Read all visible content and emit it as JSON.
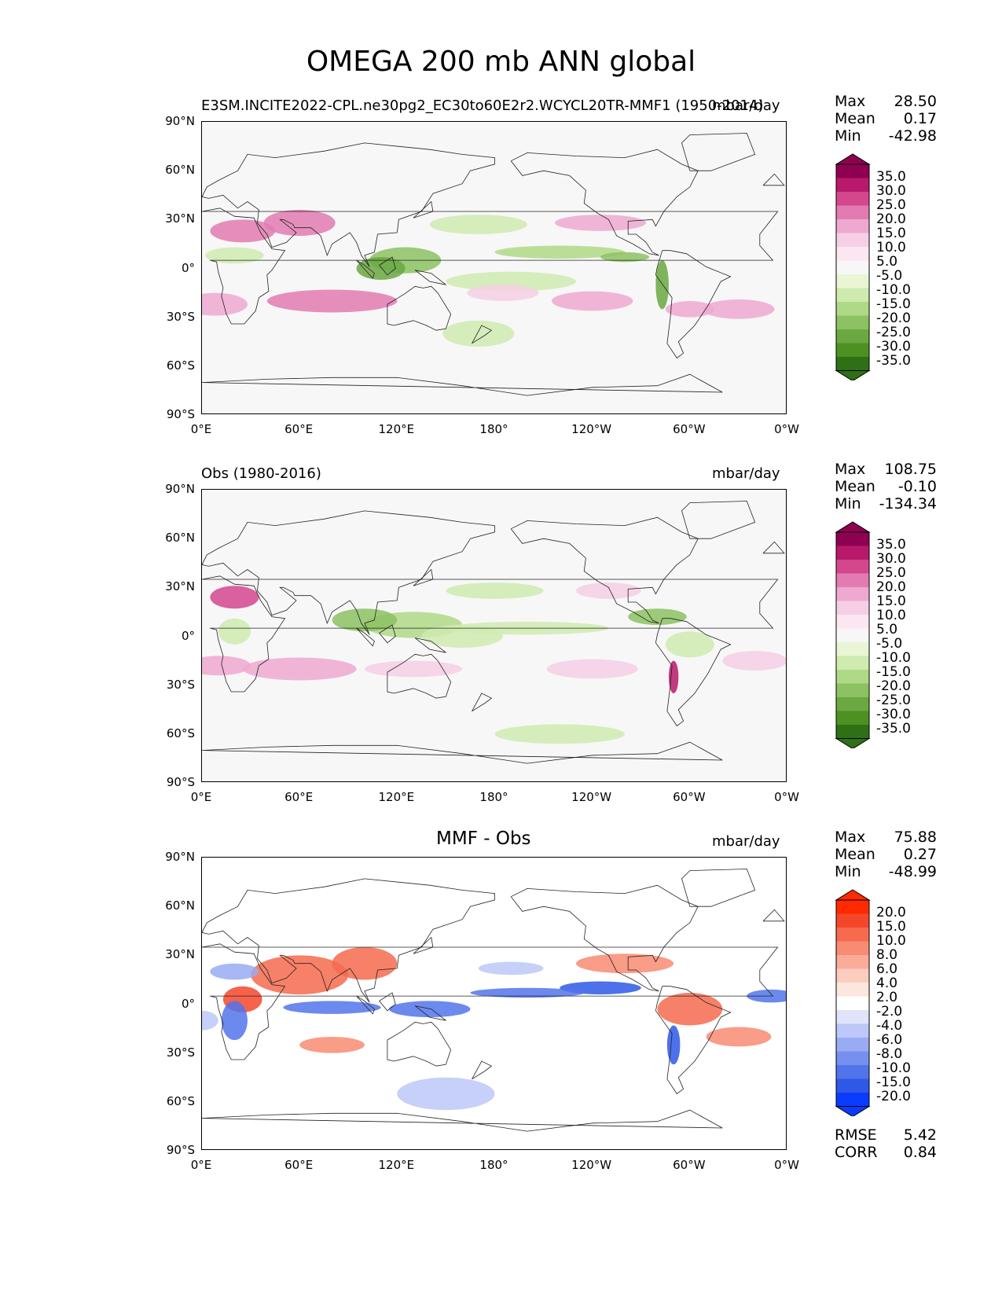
{
  "figure_title": "OMEGA 200 mb ANN global",
  "axis": {
    "lat_labels": [
      "90°N",
      "60°N",
      "30°N",
      "0°",
      "30°S",
      "60°S",
      "90°S"
    ],
    "lon_labels": [
      "0°E",
      "60°E",
      "120°E",
      "180°",
      "120°W",
      "60°W",
      "0°W"
    ]
  },
  "panels": [
    {
      "title_left": "E3SM.INCITE2022-CPL.ne30pg2_EC30to60E2r2.WCYCL20TR-MMF1 (1950-2014)",
      "title_center": "",
      "title_right": "mbar/day",
      "stats": [
        [
          "Max",
          "28.50"
        ],
        [
          "Mean",
          "0.17"
        ],
        [
          "Min",
          "-42.98"
        ]
      ],
      "colorbar": {
        "labels": [
          "35.0",
          "30.0",
          "25.0",
          "20.0",
          "15.0",
          "10.0",
          "5.0",
          "-5.0",
          "-10.0",
          "-15.0",
          "-20.0",
          "-25.0",
          "-30.0",
          "-35.0"
        ],
        "colors": [
          "#8e0152",
          "#b8196b",
          "#d4478f",
          "#e27bb1",
          "#eea9d0",
          "#f6cfe5",
          "#fbe6f1",
          "#f7f7f7",
          "#e9f5d5",
          "#cfebb0",
          "#afd986",
          "#8cc261",
          "#6aa842",
          "#4d9221",
          "#2f6f15"
        ]
      },
      "bottom_stats": []
    },
    {
      "title_left": "Obs (1980-2016)",
      "title_center": "",
      "title_right": "mbar/day",
      "stats": [
        [
          "Max",
          "108.75"
        ],
        [
          "Mean",
          "-0.10"
        ],
        [
          "Min",
          "-134.34"
        ]
      ],
      "colorbar": {
        "labels": [
          "35.0",
          "30.0",
          "25.0",
          "20.0",
          "15.0",
          "10.0",
          "5.0",
          "-5.0",
          "-10.0",
          "-15.0",
          "-20.0",
          "-25.0",
          "-30.0",
          "-35.0"
        ],
        "colors": [
          "#8e0152",
          "#b8196b",
          "#d4478f",
          "#e27bb1",
          "#eea9d0",
          "#f6cfe5",
          "#fbe6f1",
          "#f7f7f7",
          "#e9f5d5",
          "#cfebb0",
          "#afd986",
          "#8cc261",
          "#6aa842",
          "#4d9221",
          "#2f6f15"
        ]
      },
      "bottom_stats": []
    },
    {
      "title_left": "",
      "title_center": "MMF - Obs",
      "title_right": "mbar/day",
      "stats": [
        [
          "Max",
          "75.88"
        ],
        [
          "Mean",
          "0.27"
        ],
        [
          "Min",
          "-48.99"
        ]
      ],
      "colorbar": {
        "labels": [
          "20.0",
          "15.0",
          "10.0",
          "8.0",
          "6.0",
          "4.0",
          "2.0",
          "-2.0",
          "-4.0",
          "-6.0",
          "-8.0",
          "-10.0",
          "-15.0",
          "-20.0"
        ],
        "colors": [
          "#ff2a00",
          "#f4472a",
          "#f66a4e",
          "#f88b73",
          "#faac98",
          "#fccdbe",
          "#fde6dd",
          "#ffffff",
          "#dfe4fb",
          "#bcc8f7",
          "#99acf3",
          "#7590ef",
          "#5274eb",
          "#2e58e7",
          "#0a3cff"
        ]
      },
      "bottom_stats": [
        [
          "RMSE",
          "5.42"
        ],
        [
          "CORR",
          "0.84"
        ]
      ]
    }
  ]
}
